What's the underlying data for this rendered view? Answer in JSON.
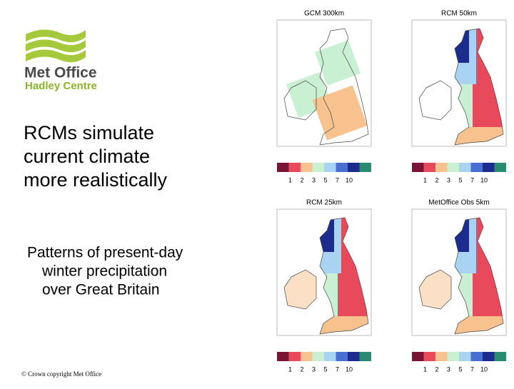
{
  "logo": {
    "name": "Met Office",
    "subname": "Hadley Centre"
  },
  "title": [
    "RCMs simulate",
    "current climate",
    "more realistically"
  ],
  "subtitle": [
    "Patterns of present-day",
    "winter precipitation",
    "over Great Britain"
  ],
  "footer": "© Crown copyright   Met Office",
  "colorbar": {
    "colors": [
      "#7a1434",
      "#e84a5c",
      "#f7c28e",
      "#c9f0d2",
      "#a9d3f2",
      "#4a6fd2",
      "#1c2c8e",
      "#2a8a72"
    ],
    "labels": [
      "1",
      "2",
      "3",
      "5",
      "7",
      "10"
    ]
  },
  "panels": [
    {
      "title": "GCM 300km"
    },
    {
      "title": "RCM 50km"
    },
    {
      "title": "RCM 25km"
    },
    {
      "title": "MetOffice Obs 5km"
    }
  ]
}
